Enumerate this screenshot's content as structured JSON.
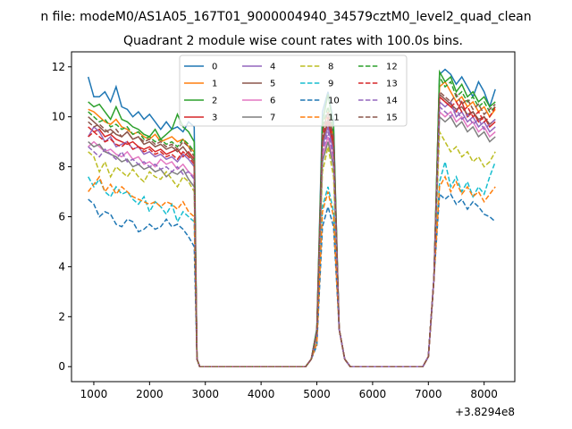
{
  "suptitle": "n file: modeM0/AS1A05_167T01_9000004940_34579cztM0_level2_quad_clean",
  "chart_data": {
    "type": "line",
    "title": "Quadrant 2 module wise count rates with 100.0s bins.",
    "xlabel": "",
    "ylabel": "",
    "x_offset_label": "+3.8294e8",
    "xlim": [
      600,
      8550
    ],
    "ylim": [
      -0.6,
      12.6
    ],
    "xticks": [
      1000,
      2000,
      3000,
      4000,
      5000,
      6000,
      7000,
      8000
    ],
    "yticks": [
      0,
      2,
      4,
      6,
      8,
      10,
      12
    ],
    "grid": false,
    "legend": {
      "placement": "top-center",
      "columns": 4
    },
    "x": [
      900,
      1000,
      1100,
      1200,
      1300,
      1400,
      1500,
      1600,
      1700,
      1800,
      1900,
      2000,
      2100,
      2200,
      2300,
      2400,
      2500,
      2600,
      2700,
      2800,
      2850,
      2900,
      3000,
      3100,
      3200,
      3300,
      3400,
      3500,
      3600,
      3700,
      3800,
      3900,
      4000,
      4100,
      4200,
      4300,
      4400,
      4500,
      4600,
      4700,
      4800,
      4900,
      5000,
      5100,
      5200,
      5300,
      5400,
      5500,
      5600,
      5700,
      5800,
      5900,
      6000,
      6100,
      6200,
      6300,
      6400,
      6500,
      6600,
      6700,
      6800,
      6900,
      7000,
      7100,
      7200,
      7300,
      7400,
      7500,
      7600,
      7700,
      7800,
      7900,
      8000,
      8100,
      8200
    ],
    "series": [
      {
        "name": "0",
        "color": "#1f77b4",
        "dash": false,
        "high": [
          11.6,
          10.8,
          10.8,
          11.0,
          10.6,
          11.2,
          10.4,
          10.3,
          10.0,
          10.2,
          9.9,
          10.1,
          9.8,
          9.5,
          9.8,
          9.5,
          9.6,
          9.4,
          9.8,
          9.6
        ],
        "peak": [
          10.2,
          10.6,
          11.0,
          9.8
        ],
        "tail": [
          11.7,
          11.9,
          11.7,
          11.3,
          11.6,
          11.2,
          10.8,
          11.4,
          11.0,
          10.4,
          11.1,
          3.0
        ]
      },
      {
        "name": "1",
        "color": "#ff7f0e",
        "dash": false,
        "high": [
          10.3,
          10.2,
          10.0,
          9.8,
          9.7,
          9.9,
          9.6,
          9.5,
          9.3,
          9.4,
          9.2,
          9.1,
          9.3,
          9.0,
          9.1,
          9.2,
          9.0,
          9.1,
          8.8,
          8.6
        ],
        "peak": [
          9.4,
          9.8,
          10.2,
          9.2
        ],
        "tail": [
          11.2,
          11.4,
          11.0,
          10.6,
          10.8,
          10.4,
          10.6,
          10.2,
          10.4,
          10.0,
          10.3,
          2.6
        ]
      },
      {
        "name": "2",
        "color": "#2ca02c",
        "dash": false,
        "high": [
          10.6,
          10.4,
          10.5,
          10.2,
          9.9,
          10.4,
          9.9,
          9.8,
          9.6,
          9.5,
          9.3,
          9.2,
          9.5,
          9.1,
          9.3,
          9.5,
          10.1,
          9.6,
          9.4,
          9.0
        ],
        "peak": [
          9.8,
          10.4,
          10.9,
          9.6
        ],
        "tail": [
          11.8,
          11.4,
          11.6,
          11.0,
          11.3,
          10.8,
          11.0,
          10.6,
          10.8,
          10.4,
          10.6,
          2.8
        ]
      },
      {
        "name": "3",
        "color": "#d62728",
        "dash": false,
        "high": [
          9.6,
          9.4,
          9.5,
          9.2,
          9.3,
          9.1,
          9.0,
          8.9,
          9.0,
          8.8,
          8.7,
          8.8,
          8.6,
          8.7,
          8.5,
          8.6,
          8.7,
          8.4,
          8.6,
          8.3
        ],
        "peak": [
          9.0,
          9.4,
          9.8,
          8.8
        ],
        "tail": [
          10.8,
          10.6,
          10.4,
          10.2,
          10.6,
          10.0,
          10.2,
          9.8,
          10.0,
          9.6,
          9.8,
          2.4
        ]
      },
      {
        "name": "4",
        "color": "#9467bd",
        "dash": false,
        "high": [
          9.2,
          9.6,
          9.4,
          9.0,
          9.2,
          8.8,
          8.9,
          9.0,
          8.7,
          8.8,
          8.5,
          8.6,
          8.4,
          8.5,
          8.3,
          8.4,
          8.2,
          8.5,
          8.3,
          8.0
        ],
        "peak": [
          8.8,
          9.2,
          9.6,
          8.6
        ],
        "tail": [
          10.6,
          10.4,
          10.6,
          10.0,
          10.2,
          9.8,
          10.0,
          9.6,
          9.8,
          9.4,
          9.6,
          2.3
        ]
      },
      {
        "name": "5",
        "color": "#8c564b",
        "dash": false,
        "high": [
          10.0,
          9.8,
          9.6,
          9.4,
          9.5,
          9.3,
          9.2,
          9.4,
          9.1,
          9.2,
          8.9,
          9.0,
          8.8,
          8.9,
          8.7,
          8.8,
          8.6,
          8.8,
          8.5,
          8.2
        ],
        "peak": [
          9.0,
          9.6,
          9.9,
          9.0
        ],
        "tail": [
          10.9,
          10.7,
          10.5,
          10.3,
          10.4,
          10.1,
          10.2,
          9.9,
          10.0,
          9.7,
          9.9,
          2.5
        ]
      },
      {
        "name": "6",
        "color": "#e377c2",
        "dash": false,
        "high": [
          8.8,
          9.0,
          8.8,
          8.6,
          8.7,
          8.5,
          8.4,
          8.6,
          8.3,
          8.4,
          8.1,
          8.2,
          8.0,
          8.3,
          8.1,
          8.2,
          7.9,
          8.1,
          7.8,
          7.6
        ],
        "peak": [
          8.4,
          8.8,
          9.2,
          8.2
        ],
        "tail": [
          10.2,
          10.0,
          10.2,
          9.8,
          10.0,
          9.6,
          9.8,
          9.4,
          9.6,
          9.2,
          9.4,
          2.2
        ]
      },
      {
        "name": "7",
        "color": "#7f7f7f",
        "dash": false,
        "high": [
          9.0,
          8.8,
          8.9,
          8.6,
          8.5,
          8.4,
          8.2,
          8.3,
          8.0,
          8.1,
          7.9,
          8.0,
          7.8,
          7.9,
          7.6,
          7.8,
          7.7,
          7.9,
          7.5,
          7.2
        ],
        "peak": [
          8.2,
          8.6,
          9.0,
          8.0
        ],
        "tail": [
          10.0,
          9.8,
          10.0,
          9.6,
          9.8,
          9.4,
          9.6,
          9.2,
          9.4,
          9.0,
          9.2,
          2.1
        ]
      },
      {
        "name": "8",
        "color": "#bcbd22",
        "dash": true,
        "high": [
          8.6,
          8.4,
          7.8,
          8.2,
          7.6,
          8.0,
          7.8,
          7.6,
          7.9,
          7.6,
          7.4,
          7.8,
          7.6,
          7.5,
          7.8,
          7.5,
          7.2,
          7.6,
          7.4,
          7.0
        ],
        "peak": [
          7.8,
          8.4,
          8.8,
          7.6
        ],
        "tail": [
          9.4,
          9.0,
          8.6,
          8.8,
          8.4,
          8.6,
          8.2,
          8.4,
          8.0,
          8.2,
          8.6,
          2.0
        ]
      },
      {
        "name": "9",
        "color": "#17becf",
        "dash": true,
        "high": [
          7.6,
          7.2,
          7.5,
          7.0,
          6.8,
          7.2,
          6.9,
          7.0,
          6.7,
          6.5,
          6.8,
          6.2,
          6.6,
          6.4,
          6.1,
          6.5,
          5.8,
          6.2,
          6.0,
          5.8
        ],
        "peak": [
          6.4,
          6.8,
          7.2,
          6.2
        ],
        "tail": [
          7.4,
          8.2,
          7.2,
          7.6,
          7.0,
          7.4,
          6.8,
          7.2,
          6.9,
          7.6,
          8.2,
          1.9
        ]
      },
      {
        "name": "10",
        "color": "#1f77b4",
        "dash": true,
        "high": [
          6.7,
          6.5,
          6.0,
          6.2,
          6.1,
          5.7,
          5.6,
          5.9,
          5.8,
          5.4,
          5.5,
          5.7,
          5.5,
          5.6,
          5.9,
          5.6,
          5.7,
          5.5,
          5.2,
          4.8
        ],
        "peak": [
          5.6,
          6.0,
          6.4,
          5.6
        ],
        "tail": [
          6.9,
          6.7,
          6.9,
          6.5,
          6.7,
          6.3,
          6.6,
          6.4,
          6.1,
          6.0,
          5.8,
          1.8
        ]
      },
      {
        "name": "11",
        "color": "#ff7f0e",
        "dash": true,
        "high": [
          7.0,
          7.3,
          7.6,
          7.0,
          7.3,
          6.9,
          7.2,
          7.0,
          6.8,
          6.7,
          6.6,
          6.5,
          6.6,
          6.4,
          6.6,
          6.5,
          6.3,
          6.6,
          6.2,
          6.0
        ],
        "peak": [
          6.2,
          6.6,
          7.0,
          6.0
        ],
        "tail": [
          7.2,
          7.6,
          7.0,
          7.4,
          6.9,
          7.2,
          6.8,
          7.0,
          6.6,
          6.9,
          7.2,
          2.0
        ]
      },
      {
        "name": "12",
        "color": "#2ca02c",
        "dash": true,
        "high": [
          10.2,
          10.0,
          9.8,
          9.9,
          9.6,
          9.7,
          9.5,
          9.6,
          9.3,
          9.4,
          9.1,
          9.2,
          9.0,
          9.1,
          8.9,
          9.0,
          8.8,
          9.1,
          8.9,
          8.6
        ],
        "peak": [
          9.6,
          10.0,
          10.4,
          9.4
        ],
        "tail": [
          11.6,
          11.2,
          11.4,
          10.8,
          11.0,
          10.6,
          10.8,
          10.4,
          10.6,
          10.2,
          10.4,
          2.7
        ]
      },
      {
        "name": "13",
        "color": "#d62728",
        "dash": true,
        "high": [
          9.2,
          9.4,
          9.2,
          9.0,
          9.1,
          8.9,
          8.8,
          9.0,
          8.7,
          8.8,
          8.6,
          8.7,
          8.5,
          8.6,
          8.4,
          8.5,
          8.3,
          8.6,
          8.4,
          8.1
        ],
        "peak": [
          9.2,
          9.6,
          10.0,
          9.0
        ],
        "tail": [
          10.8,
          10.6,
          10.4,
          10.6,
          10.2,
          10.4,
          10.0,
          10.2,
          9.8,
          10.0,
          10.4,
          2.4
        ]
      },
      {
        "name": "14",
        "color": "#9467bd",
        "dash": true,
        "high": [
          8.8,
          8.6,
          8.4,
          8.7,
          8.5,
          8.3,
          8.6,
          8.2,
          8.3,
          8.1,
          8.2,
          8.0,
          8.1,
          7.9,
          8.0,
          7.8,
          8.0,
          7.7,
          7.8,
          7.5
        ],
        "peak": [
          8.6,
          9.0,
          9.4,
          8.4
        ],
        "tail": [
          10.4,
          10.2,
          10.0,
          10.3,
          9.9,
          10.1,
          9.7,
          9.9,
          9.5,
          9.7,
          9.9,
          2.3
        ]
      },
      {
        "name": "15",
        "color": "#8c564b",
        "dash": true,
        "high": [
          9.8,
          9.6,
          9.7,
          9.5,
          9.3,
          9.5,
          9.2,
          9.4,
          9.1,
          9.2,
          9.0,
          9.1,
          8.9,
          9.0,
          8.8,
          8.9,
          8.7,
          9.0,
          8.8,
          8.4
        ],
        "peak": [
          9.4,
          9.8,
          10.2,
          9.2
        ],
        "tail": [
          11.0,
          10.8,
          10.6,
          10.9,
          10.5,
          10.7,
          10.3,
          10.5,
          10.1,
          10.3,
          10.5,
          2.5
        ]
      }
    ]
  }
}
